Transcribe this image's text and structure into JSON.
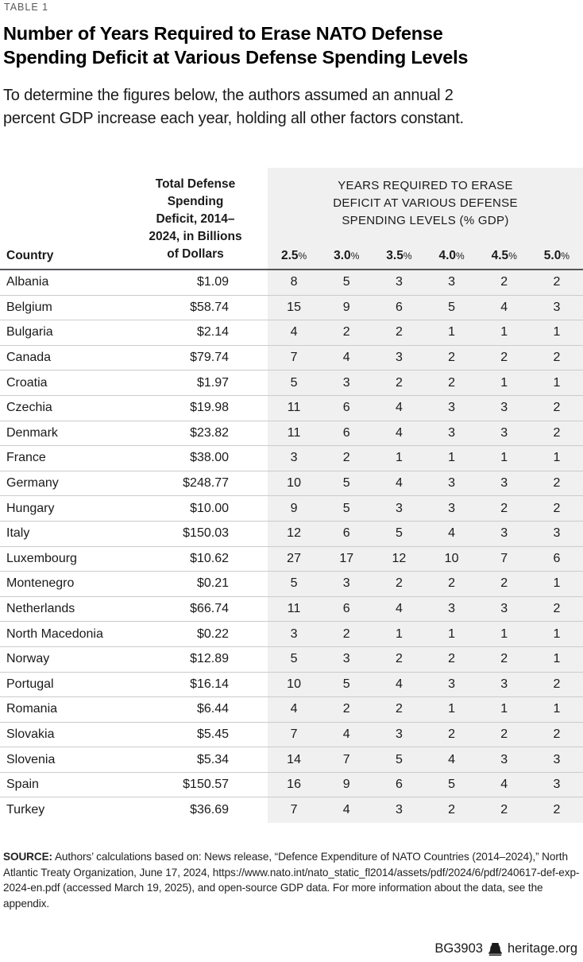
{
  "table_label": "TABLE 1",
  "title_lines": [
    "Number of Years Required to Erase NATO Defense",
    "Spending Deficit at Various Defense Spending Levels"
  ],
  "subtitle_lines": [
    "To determine the figures below, the authors assumed an annual 2",
    "percent GDP increase each year, holding all other factors constant."
  ],
  "chart_data": {
    "type": "table",
    "title": "Number of Years Required to Erase NATO Defense Spending Deficit at Various Defense Spending Levels",
    "country_header": "Country",
    "deficit_header": "Total Defense Spending Deficit, 2014–2024, in Billions of Dollars",
    "years_header": "YEARS REQUIRED TO ERASE DEFICIT AT VARIOUS DEFENSE SPENDING LEVELS (% GDP)",
    "spending_levels": [
      {
        "num": "2.5",
        "sym": "%"
      },
      {
        "num": "3.0",
        "sym": "%"
      },
      {
        "num": "3.5",
        "sym": "%"
      },
      {
        "num": "4.0",
        "sym": "%"
      },
      {
        "num": "4.5",
        "sym": "%"
      },
      {
        "num": "5.0",
        "sym": "%"
      }
    ],
    "rows": [
      {
        "country": "Albania",
        "deficit": "$1.09",
        "years": [
          8,
          5,
          3,
          3,
          2,
          2
        ]
      },
      {
        "country": "Belgium",
        "deficit": "$58.74",
        "years": [
          15,
          9,
          6,
          5,
          4,
          3
        ]
      },
      {
        "country": "Bulgaria",
        "deficit": "$2.14",
        "years": [
          4,
          2,
          2,
          1,
          1,
          1
        ]
      },
      {
        "country": "Canada",
        "deficit": "$79.74",
        "years": [
          7,
          4,
          3,
          2,
          2,
          2
        ]
      },
      {
        "country": "Croatia",
        "deficit": "$1.97",
        "years": [
          5,
          3,
          2,
          2,
          1,
          1
        ]
      },
      {
        "country": "Czechia",
        "deficit": "$19.98",
        "years": [
          11,
          6,
          4,
          3,
          3,
          2
        ]
      },
      {
        "country": "Denmark",
        "deficit": "$23.82",
        "years": [
          11,
          6,
          4,
          3,
          3,
          2
        ]
      },
      {
        "country": "France",
        "deficit": "$38.00",
        "years": [
          3,
          2,
          1,
          1,
          1,
          1
        ]
      },
      {
        "country": "Germany",
        "deficit": "$248.77",
        "years": [
          10,
          5,
          4,
          3,
          3,
          2
        ]
      },
      {
        "country": "Hungary",
        "deficit": "$10.00",
        "years": [
          9,
          5,
          3,
          3,
          2,
          2
        ]
      },
      {
        "country": "Italy",
        "deficit": "$150.03",
        "years": [
          12,
          6,
          5,
          4,
          3,
          3
        ]
      },
      {
        "country": "Luxembourg",
        "deficit": "$10.62",
        "years": [
          27,
          17,
          12,
          10,
          7,
          6
        ]
      },
      {
        "country": "Montenegro",
        "deficit": "$0.21",
        "years": [
          5,
          3,
          2,
          2,
          2,
          1
        ]
      },
      {
        "country": "Netherlands",
        "deficit": "$66.74",
        "years": [
          11,
          6,
          4,
          3,
          3,
          2
        ]
      },
      {
        "country": "North Macedonia",
        "deficit": "$0.22",
        "years": [
          3,
          2,
          1,
          1,
          1,
          1
        ]
      },
      {
        "country": "Norway",
        "deficit": "$12.89",
        "years": [
          5,
          3,
          2,
          2,
          2,
          1
        ]
      },
      {
        "country": "Portugal",
        "deficit": "$16.14",
        "years": [
          10,
          5,
          4,
          3,
          3,
          2
        ]
      },
      {
        "country": "Romania",
        "deficit": "$6.44",
        "years": [
          4,
          2,
          2,
          1,
          1,
          1
        ]
      },
      {
        "country": "Slovakia",
        "deficit": "$5.45",
        "years": [
          7,
          4,
          3,
          2,
          2,
          2
        ]
      },
      {
        "country": "Slovenia",
        "deficit": "$5.34",
        "years": [
          14,
          7,
          5,
          4,
          3,
          3
        ]
      },
      {
        "country": "Spain",
        "deficit": "$150.57",
        "years": [
          16,
          9,
          6,
          5,
          4,
          3
        ]
      },
      {
        "country": "Turkey",
        "deficit": "$36.69",
        "years": [
          7,
          4,
          3,
          2,
          2,
          2
        ]
      }
    ]
  },
  "source": {
    "label": "SOURCE:",
    "text": "Authors’ calculations based on: News release, “Defence Expenditure of NATO Countries (2014–2024),” North Atlantic Treaty Organization, June 17, 2024, https://www.nato.int/nato_static_fl2014/assets/pdf/2024/6/pdf/240617-def-exp-2024-en.pdf (accessed March 19, 2025), and open-source GDP data. For more information about the data, see the appendix."
  },
  "footer": {
    "doc_id": "BG3903",
    "site": "heritage.org",
    "icon": "liberty-bell-icon"
  },
  "colors": {
    "band_gray": "#f0f0f0",
    "header_rule": "#54565a",
    "row_divider": "#cbcbcb",
    "eyebrow_gray": "#58595b",
    "text": "#1a1a1a"
  }
}
